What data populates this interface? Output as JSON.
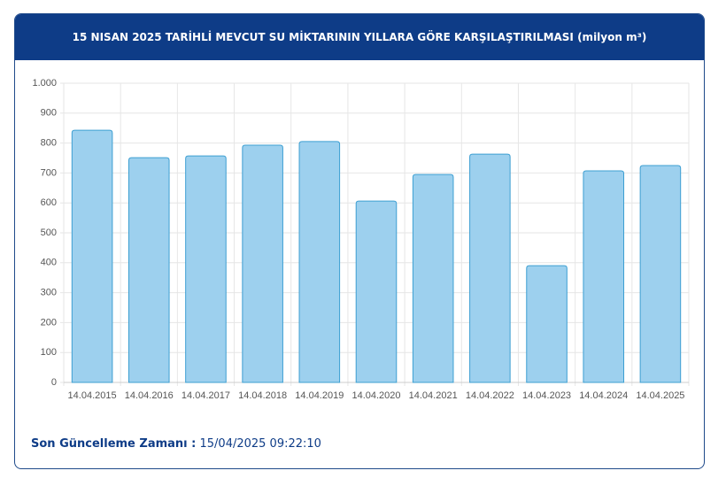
{
  "chart_data": {
    "type": "bar",
    "title": "15 NISAN 2025 TARİHLİ MEVCUT SU MİKTARININ YILLARA GÖRE KARŞILAŞTIRILMASI (milyon m³)",
    "categories": [
      "14.04.2015",
      "14.04.2016",
      "14.04.2017",
      "14.04.2018",
      "14.04.2019",
      "14.04.2020",
      "14.04.2021",
      "14.04.2022",
      "14.04.2023",
      "14.04.2024",
      "14.04.2025"
    ],
    "values": [
      843,
      751,
      757,
      793,
      805,
      606,
      695,
      763,
      390,
      707,
      725
    ],
    "color": "#9dd0ee",
    "ylim": [
      0,
      1000
    ],
    "yticks": [
      0,
      100,
      200,
      300,
      400,
      500,
      600,
      700,
      800,
      900,
      {
        "value": 1000,
        "label": "1.000"
      }
    ],
    "grid": true
  },
  "footer": {
    "label": "Son Güncelleme Zamanı :",
    "value": "15/04/2025 09:22:10"
  }
}
